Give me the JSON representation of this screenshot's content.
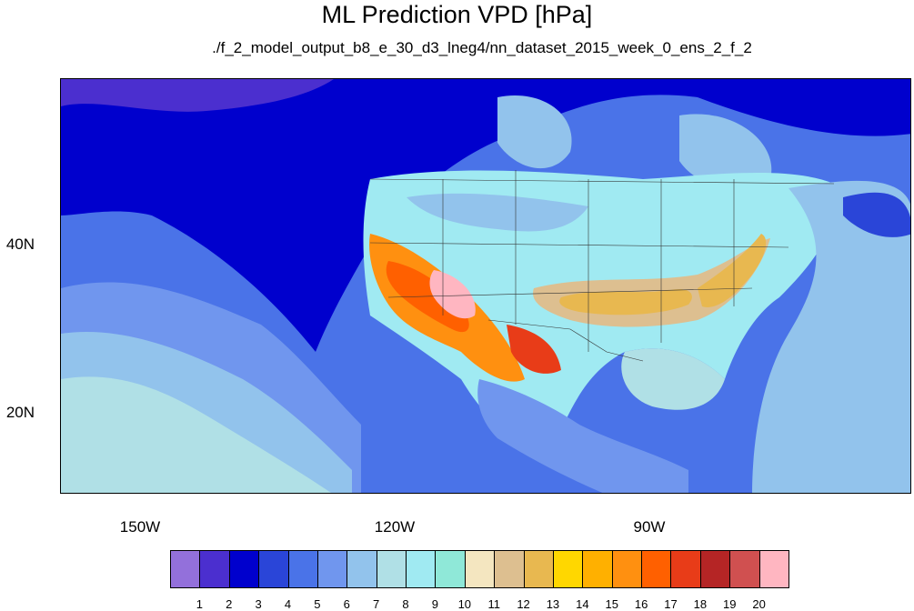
{
  "title": "ML Prediction VPD [hPa]",
  "subtitle": "./f_2_model_output_b8_e_30_d3_lneg4/nn_dataset_2015_week_0_ens_2_f_2",
  "axes": {
    "lon_labels": [
      {
        "value": -150,
        "text": "150W"
      },
      {
        "value": -120,
        "text": "120W"
      },
      {
        "value": -90,
        "text": "90W"
      }
    ],
    "lat_labels": [
      {
        "value": 40,
        "text": "40N"
      },
      {
        "value": 20,
        "text": "20N"
      }
    ]
  },
  "colorbar": {
    "colors": [
      "#9370db",
      "#4b2fcf",
      "#0000cd",
      "#2a45d8",
      "#4a73e8",
      "#7096ee",
      "#92c3ec",
      "#b0e0e6",
      "#a0eaf2",
      "#8fe8d8",
      "#f4e6c0",
      "#ddbf90",
      "#e8b850",
      "#ffd700",
      "#ffb000",
      "#ff9010",
      "#ff6000",
      "#e83c18",
      "#b52525",
      "#d05050",
      "#ffb6c1"
    ],
    "labels": [
      "1",
      "2",
      "3",
      "4",
      "5",
      "6",
      "7",
      "8",
      "9",
      "10",
      "11",
      "12",
      "13",
      "14",
      "15",
      "16",
      "17",
      "18",
      "19",
      "20"
    ]
  },
  "regions": [
    {
      "name": "ocean-north-dark",
      "color": "#2a45d8"
    },
    {
      "name": "ocean-pacific-mid",
      "color": "#4a73e8"
    },
    {
      "name": "ocean-subtropical",
      "color": "#7096ee"
    },
    {
      "name": "ocean-tropical",
      "color": "#b0e0e6"
    },
    {
      "name": "land-conus",
      "color": "#a0eaf2"
    },
    {
      "name": "great-plains-warm",
      "color": "#e8b850"
    },
    {
      "name": "southwest-hot",
      "color": "#ff9010"
    },
    {
      "name": "desert-core",
      "color": "#ffb6c1"
    }
  ]
}
